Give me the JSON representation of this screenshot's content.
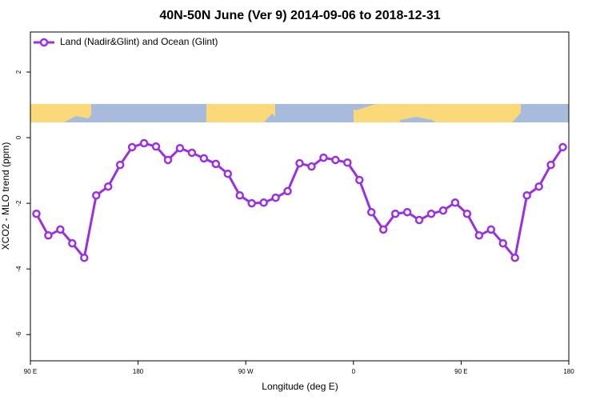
{
  "chart_data": {
    "type": "line",
    "title": "40N-50N June (Ver 9)   2014-09-06 to 2018-12-31",
    "x_label": "Longitude (deg E)",
    "y_label": "XCO2 - MLO trend (ppm)",
    "x": [
      95,
      105,
      115,
      125,
      135,
      145,
      155,
      165,
      175,
      185,
      195,
      205,
      215,
      225,
      235,
      245,
      255,
      265,
      275,
      285,
      295,
      305,
      315,
      325,
      335,
      345,
      355,
      365,
      375,
      385,
      395,
      405,
      415,
      425,
      435,
      445,
      455,
      465,
      475,
      485,
      495,
      505,
      515,
      525,
      535
    ],
    "series": [
      {
        "name": "Land (Nadir&Glint) and Ocean (Glint)",
        "color": "#9b30e0",
        "values": [
          -2.32,
          -2.98,
          -2.8,
          -3.22,
          -3.66,
          -1.76,
          -1.49,
          -0.83,
          -0.29,
          -0.17,
          -0.27,
          -0.68,
          -0.32,
          -0.46,
          -0.63,
          -0.8,
          -1.1,
          -1.76,
          -2.0,
          -1.98,
          -1.83,
          -1.63,
          -0.78,
          -0.88,
          -0.61,
          -0.68,
          -0.76,
          -1.29,
          -2.27,
          -2.8,
          -2.32,
          -2.27,
          -2.51,
          -2.32,
          -2.22,
          -1.98,
          -2.32,
          -2.98,
          -2.8,
          -3.22,
          -3.66,
          -1.76,
          -1.49,
          -0.83,
          -0.29
        ]
      }
    ],
    "xlim": [
      90,
      540
    ],
    "xticks": [
      {
        "value": 90,
        "label": "90 E"
      },
      {
        "value": 180,
        "label": "180"
      },
      {
        "value": 270,
        "label": "90 W"
      },
      {
        "value": 360,
        "label": "0"
      },
      {
        "value": 450,
        "label": "90 E"
      },
      {
        "value": 540,
        "label": "180"
      }
    ],
    "ylim": [
      -6.8,
      3.22
    ],
    "yticks": [
      -6,
      -4,
      -2,
      0,
      2
    ],
    "legend": "top-left"
  }
}
